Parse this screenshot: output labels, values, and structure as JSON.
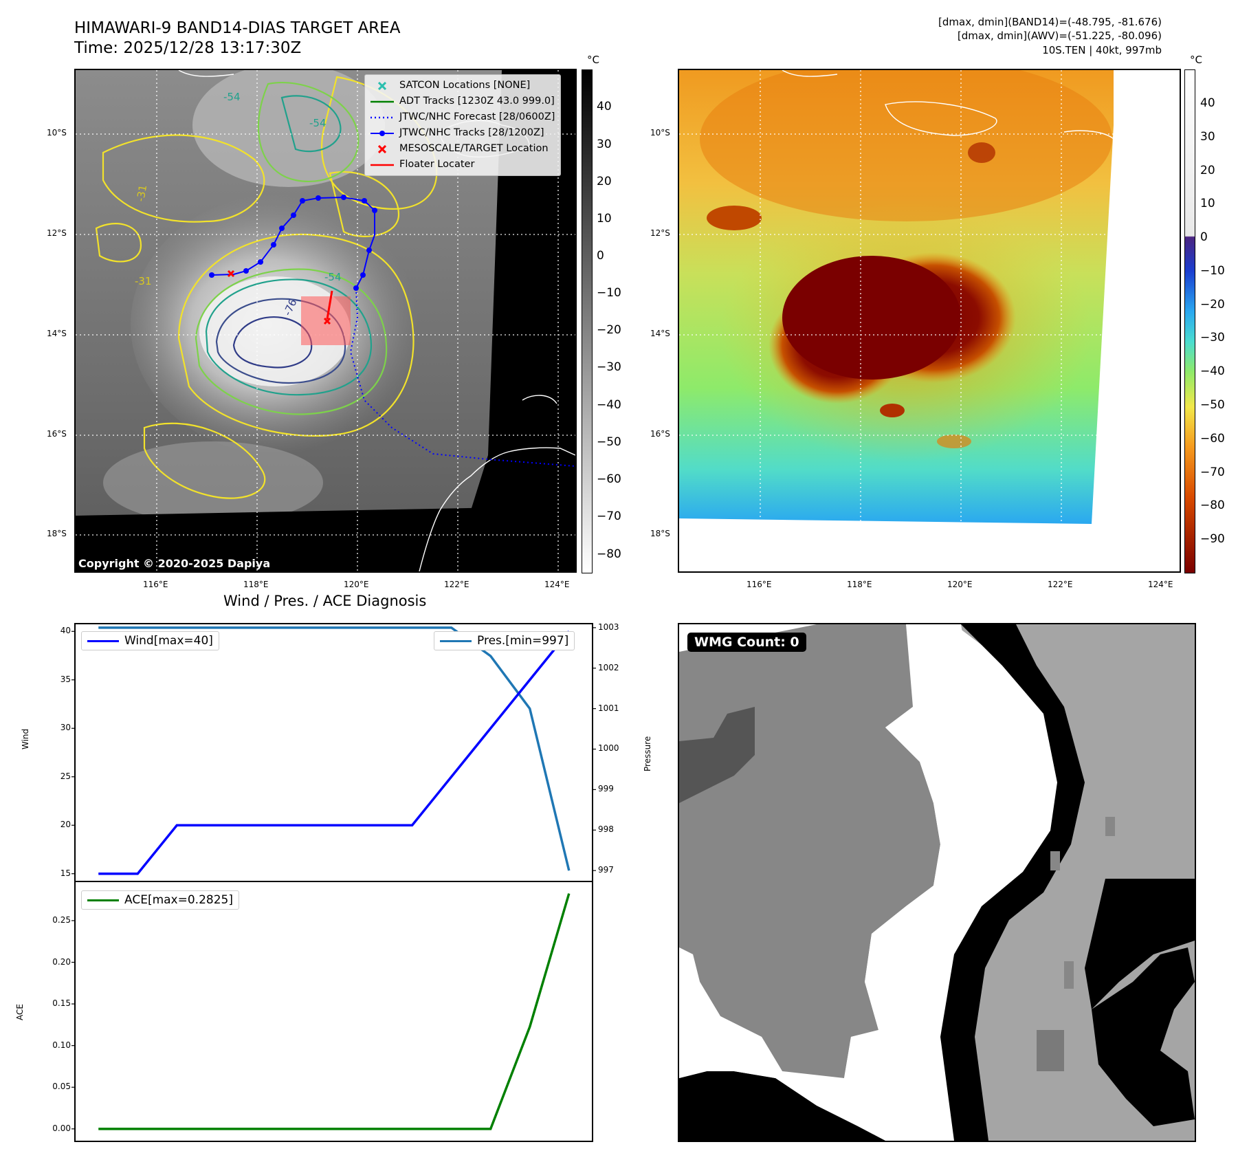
{
  "header": {
    "title_line1": "HIMAWARI-9 BAND14-DIAS TARGET AREA",
    "title_line2": "Time: 2025/12/28 13:17:30Z",
    "info_line1": "[dmax, dmin](BAND14)=(-48.795, -81.676)",
    "info_line2": "[dmax, dmin](AWV)=(-51.225, -80.096)",
    "info_line3": "10S.TEN | 40kt, 997mb"
  },
  "map": {
    "lat_labels": [
      "10°S",
      "12°S",
      "14°S",
      "16°S",
      "18°S"
    ],
    "lon_labels": [
      "116°E",
      "118°E",
      "120°E",
      "122°E",
      "124°E"
    ],
    "contour_labels": [
      "-54",
      "-54",
      "-31",
      "-31",
      "-54",
      "-76"
    ],
    "copyright": "Copyright © 2020-2025 Dapiya"
  },
  "legend": {
    "items": [
      {
        "label": "SATCON Locations [NONE]",
        "color": "#2bbfae",
        "symbol": "x"
      },
      {
        "label": "ADT Tracks [1230Z 43.0 999.0]",
        "color": "#008000",
        "symbol": "line"
      },
      {
        "label": "JTWC/NHC Forecast [28/0600Z]",
        "color": "#0000ff",
        "symbol": "dotted"
      },
      {
        "label": "JTWC/NHC Tracks [28/1200Z]",
        "color": "#0000ff",
        "symbol": "line-dot"
      },
      {
        "label": "MESOSCALE/TARGET Location",
        "color": "#ff0000",
        "symbol": "x"
      },
      {
        "label": "Floater Locater",
        "color": "#ff0000",
        "symbol": "line"
      }
    ]
  },
  "colorbar_gray": {
    "unit": "°C",
    "ticks": [
      "40",
      "30",
      "20",
      "10",
      "0",
      "−10",
      "−20",
      "−30",
      "−40",
      "−50",
      "−60",
      "−70",
      "−80"
    ]
  },
  "colorbar_color": {
    "unit": "°C",
    "ticks": [
      "40",
      "30",
      "20",
      "10",
      "0",
      "−10",
      "−20",
      "−30",
      "−40",
      "−50",
      "−60",
      "−70",
      "−80",
      "−90"
    ]
  },
  "wmg": {
    "badge": "WMG Count: 0"
  },
  "chart_data": [
    {
      "type": "line",
      "title": "Wind / Pres. / ACE Diagnosis",
      "ylabel": "Wind",
      "y2label": "Pressure",
      "ylim": [
        14.2,
        40.8
      ],
      "y2lim": [
        996.73,
        1003.1
      ],
      "yticks": [
        "15",
        "20",
        "25",
        "30",
        "35",
        "40"
      ],
      "y2ticks": [
        "997",
        "998",
        "999",
        "1000",
        "1001",
        "1002",
        "1003"
      ],
      "x": [
        0,
        1,
        2,
        3,
        4,
        5,
        6,
        7,
        8,
        9,
        10,
        11,
        12
      ],
      "series": [
        {
          "name": "Wind[max=40]",
          "color": "#0000ff",
          "axis": "left",
          "values": [
            15,
            15,
            20,
            20,
            20,
            20,
            20,
            20,
            20,
            25,
            30,
            35,
            40
          ]
        },
        {
          "name": "Pres.[min=997]",
          "color": "#1f77b4",
          "axis": "right",
          "values": [
            1003,
            1003,
            1003,
            1003,
            1003,
            1003,
            1003,
            1003,
            1003,
            1003,
            1002.3,
            1001,
            997
          ]
        }
      ]
    },
    {
      "type": "line",
      "ylabel": "ACE",
      "ylim": [
        -0.015,
        0.297
      ],
      "yticks": [
        "0.00",
        "0.05",
        "0.10",
        "0.15",
        "0.20",
        "0.25"
      ],
      "x": [
        0,
        1,
        2,
        3,
        4,
        5,
        6,
        7,
        8,
        9,
        10,
        11,
        12
      ],
      "series": [
        {
          "name": "ACE[max=0.2825]",
          "color": "#008000",
          "values": [
            0,
            0,
            0,
            0,
            0,
            0,
            0,
            0,
            0,
            0,
            0,
            0.1225,
            0.2825
          ]
        }
      ]
    }
  ]
}
